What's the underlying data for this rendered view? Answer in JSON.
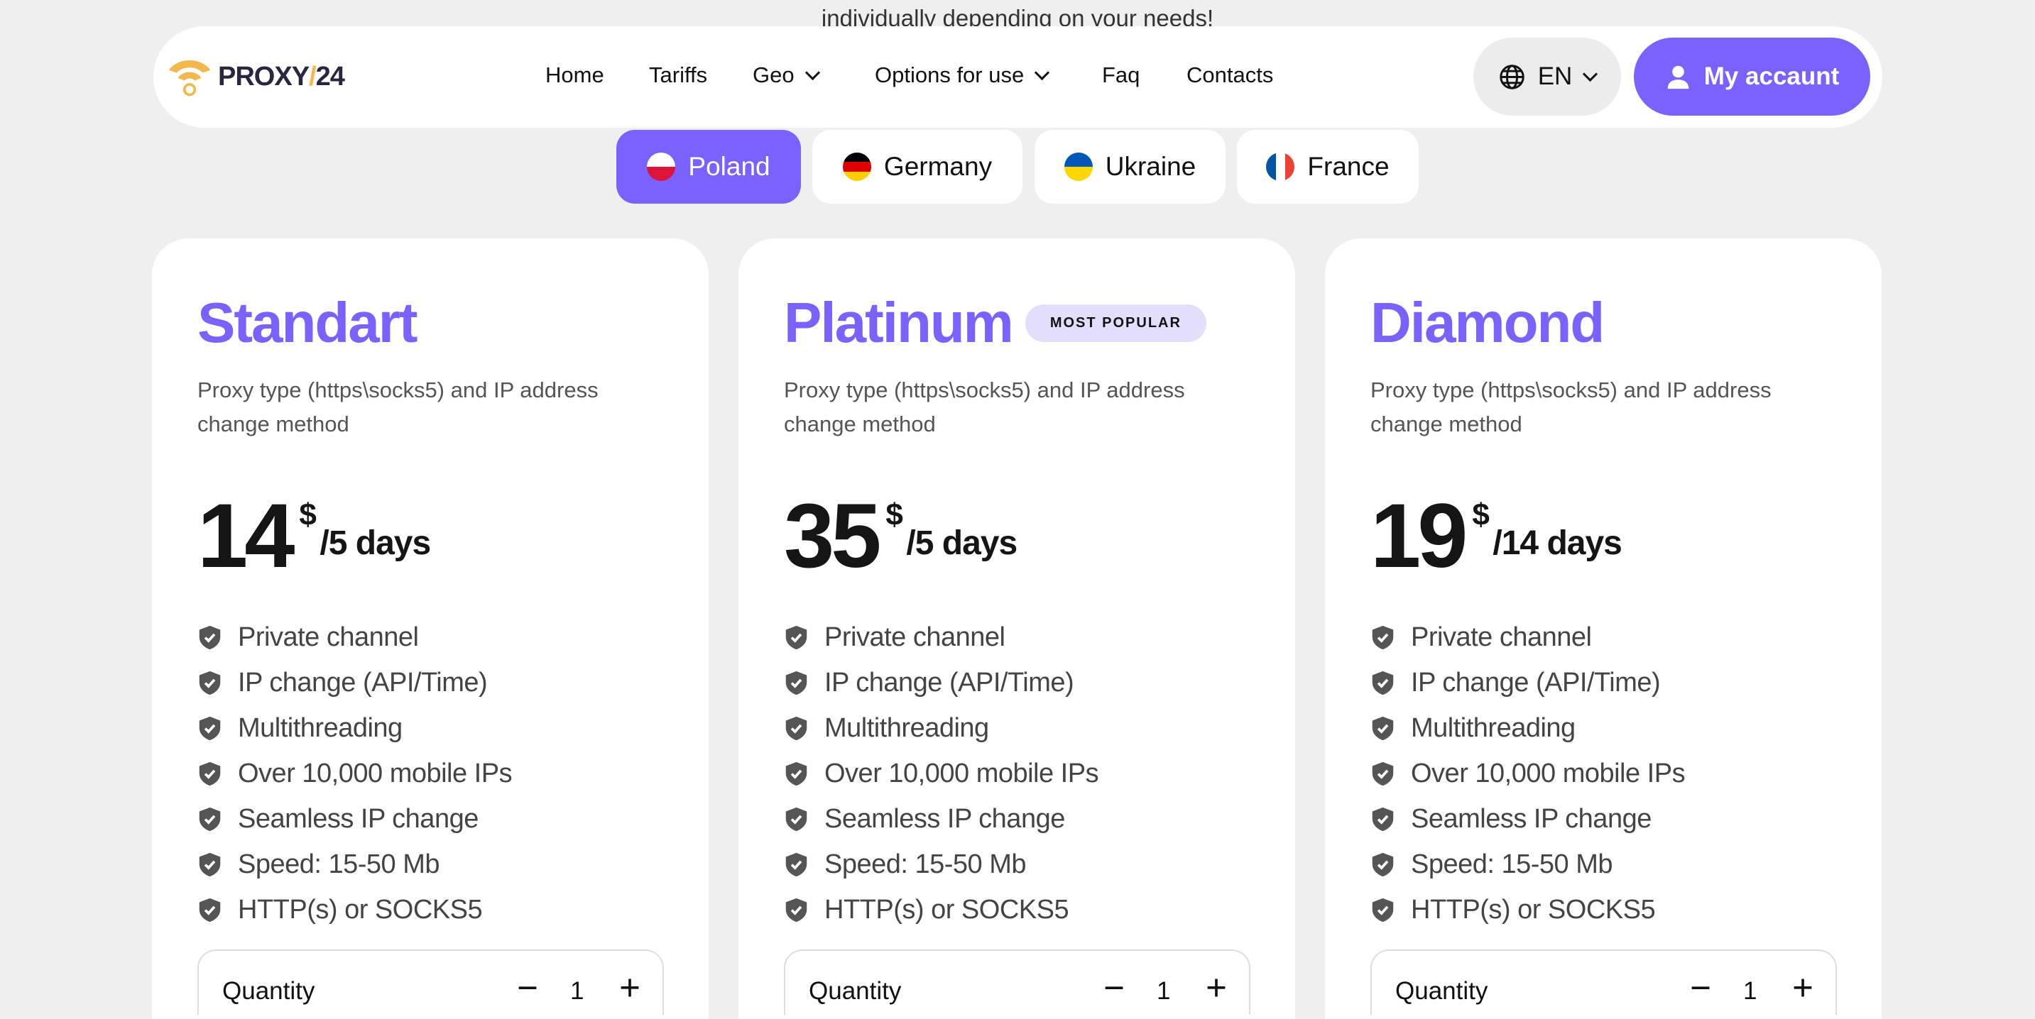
{
  "intro_text": "individually depending on your needs!",
  "logo": {
    "text_a": "PROXY",
    "text_sep": "/",
    "text_b": "24"
  },
  "nav": [
    {
      "label": "Home"
    },
    {
      "label": "Tariffs"
    },
    {
      "label": "Geo",
      "dropdown": true
    },
    {
      "label": "Options for use",
      "dropdown": true
    },
    {
      "label": "Faq"
    },
    {
      "label": "Contacts"
    }
  ],
  "language": "EN",
  "account_label": "My accaunt",
  "countries": [
    {
      "label": "Poland",
      "active": true
    },
    {
      "label": "Germany"
    },
    {
      "label": "Ukraine"
    },
    {
      "label": "France"
    }
  ],
  "colors": {
    "accent": "#7b61ff",
    "badge_bg": "#e4defd",
    "logo_yellow": "#f2b84b"
  },
  "plans": [
    {
      "name": "Standart",
      "badge": "",
      "description": "Proxy type (https\\socks5) and IP address change method",
      "price": "14",
      "currency": "$",
      "period": "/5 days",
      "features": [
        "Private channel",
        "IP change (API/Time)",
        "Multithreading",
        "Over 10,000 mobile IPs",
        "Seamless IP change",
        "Speed: 15-50 Mb",
        "HTTP(s) or SOCKS5"
      ],
      "quantity_label": "Quantity",
      "quantity": "1"
    },
    {
      "name": "Platinum",
      "badge": "MOST POPULAR",
      "description": "Proxy type (https\\socks5) and IP address change method",
      "price": "35",
      "currency": "$",
      "period": "/5 days",
      "features": [
        "Private channel",
        "IP change (API/Time)",
        "Multithreading",
        "Over 10,000 mobile IPs",
        "Seamless IP change",
        "Speed: 15-50 Mb",
        "HTTP(s) or SOCKS5"
      ],
      "quantity_label": "Quantity",
      "quantity": "1"
    },
    {
      "name": "Diamond",
      "badge": "",
      "description": "Proxy type (https\\socks5) and IP address change method",
      "price": "19",
      "currency": "$",
      "period": "/14 days",
      "features": [
        "Private channel",
        "IP change (API/Time)",
        "Multithreading",
        "Over 10,000 mobile IPs",
        "Seamless IP change",
        "Speed: 15-50 Mb",
        "HTTP(s) or SOCKS5"
      ],
      "quantity_label": "Quantity",
      "quantity": "1"
    }
  ]
}
